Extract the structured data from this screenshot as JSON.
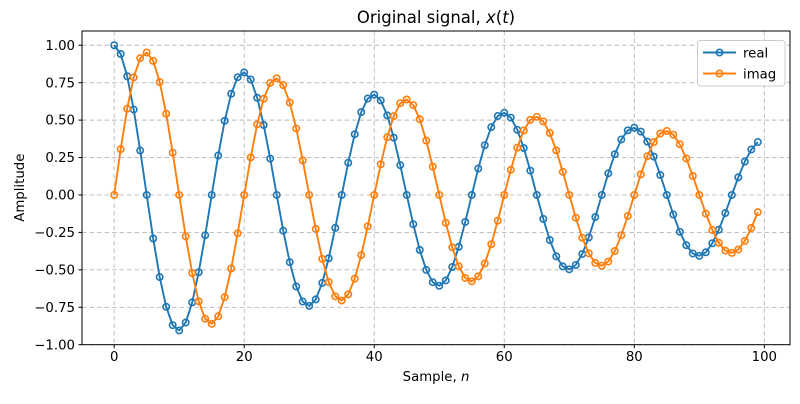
{
  "chart_data": {
    "type": "line",
    "title": "Original signal, x(t)",
    "title_parts": [
      {
        "t": "Original signal, ",
        "i": 0
      },
      {
        "t": "x",
        "i": 1
      },
      {
        "t": "(",
        "i": 0
      },
      {
        "t": "t",
        "i": 1
      },
      {
        "t": ")",
        "i": 0
      }
    ],
    "xlabel": "Sample, n",
    "xlabel_parts": [
      {
        "t": "Sample, ",
        "i": 0
      },
      {
        "t": "n",
        "i": 1
      }
    ],
    "ylabel": "Amplitude",
    "xlim": [
      -4.95,
      103.95
    ],
    "ylim": [
      -1.0,
      1.0952
    ],
    "xticks": [
      0,
      20,
      40,
      60,
      80,
      100
    ],
    "xtick_labels": [
      "0",
      "20",
      "40",
      "60",
      "80",
      "100"
    ],
    "yticks": [
      1.0,
      0.75,
      0.5,
      0.25,
      0.0,
      -0.25,
      -0.5,
      -0.75,
      -1.0
    ],
    "ytick_labels": [
      "1.00",
      "0.75",
      "0.50",
      "0.25",
      "0.00",
      "−0.25",
      "−0.50",
      "−0.75",
      "−1.00"
    ],
    "grid": true,
    "grid_style": "dashed",
    "marker": "open-circle",
    "legend": {
      "position": "upper right",
      "entries": [
        "real",
        "imag"
      ]
    },
    "colors": {
      "real": "#1f77b4",
      "imag": "#ff7f0e",
      "grid": "#b8b8b8",
      "text": "#000000",
      "spine": "#000000",
      "background": "#ffffff",
      "legend_border": "#cccccc"
    },
    "x": [
      0,
      1,
      2,
      3,
      4,
      5,
      6,
      7,
      8,
      9,
      10,
      11,
      12,
      13,
      14,
      15,
      16,
      17,
      18,
      19,
      20,
      21,
      22,
      23,
      24,
      25,
      26,
      27,
      28,
      29,
      30,
      31,
      32,
      33,
      34,
      35,
      36,
      37,
      38,
      39,
      40,
      41,
      42,
      43,
      44,
      45,
      46,
      47,
      48,
      49,
      50,
      51,
      52,
      53,
      54,
      55,
      56,
      57,
      58,
      59,
      60,
      61,
      62,
      63,
      64,
      65,
      66,
      67,
      68,
      69,
      70,
      71,
      72,
      73,
      74,
      75,
      76,
      77,
      78,
      79,
      80,
      81,
      82,
      83,
      84,
      85,
      86,
      87,
      88,
      89,
      90,
      91,
      92,
      93,
      94,
      95,
      96,
      97,
      98,
      99
    ],
    "series": [
      {
        "name": "real",
        "color": "#1f77b4",
        "values": [
          1.0,
          0.9416,
          0.793,
          0.5704,
          0.2969,
          0.0,
          -0.291,
          -0.5481,
          -0.7468,
          -0.8692,
          -0.9048,
          -0.852,
          -0.7175,
          -0.5161,
          -0.2686,
          0.0,
          0.2633,
          0.4959,
          0.6758,
          0.7866,
          0.8187,
          0.771,
          0.6492,
          0.467,
          0.2431,
          0.0,
          -0.2383,
          -0.4487,
          -0.6114,
          -0.7117,
          -0.7408,
          -0.6975,
          -0.5874,
          -0.4226,
          -0.2199,
          0.0,
          0.2156,
          0.406,
          0.5533,
          0.644,
          0.6703,
          0.6312,
          0.5315,
          0.3824,
          0.199,
          0.0,
          -0.1951,
          -0.3674,
          -0.5006,
          -0.5826,
          -0.6065,
          -0.5711,
          -0.481,
          -0.346,
          -0.1801,
          0.0,
          0.1765,
          0.3324,
          0.453,
          0.5272,
          0.5488,
          0.5168,
          0.4352,
          0.3131,
          0.1629,
          0.0,
          -0.1597,
          -0.3008,
          -0.4098,
          -0.4771,
          -0.4966,
          -0.4676,
          -0.3938,
          -0.2833,
          -0.1474,
          0.0,
          0.1445,
          0.2722,
          0.3708,
          0.4316,
          0.4493,
          0.4231,
          0.3563,
          0.2563,
          0.1334,
          0.0,
          -0.1308,
          -0.2463,
          -0.3356,
          -0.3906,
          -0.4066,
          -0.3828,
          -0.3224,
          -0.2319,
          -0.1207,
          0.0,
          0.1183,
          0.2228,
          0.3036,
          0.3534
        ]
      },
      {
        "name": "imag",
        "color": "#ff7f0e",
        "values": [
          0.0,
          0.3059,
          0.5762,
          0.7851,
          0.9138,
          0.9512,
          0.8957,
          0.7543,
          0.5426,
          0.2824,
          0.0,
          -0.2768,
          -0.5213,
          -0.7104,
          -0.8269,
          -0.8607,
          -0.8104,
          -0.6826,
          -0.491,
          -0.2555,
          0.0,
          0.2505,
          0.4717,
          0.6428,
          0.7481,
          0.7788,
          0.7334,
          0.6176,
          0.4443,
          0.2312,
          0.0,
          -0.2266,
          -0.4268,
          -0.5816,
          -0.677,
          -0.7047,
          -0.6636,
          -0.5588,
          -0.402,
          -0.2092,
          0.0,
          0.2051,
          0.3862,
          0.5263,
          0.6125,
          0.6376,
          0.6004,
          0.5056,
          0.3637,
          0.1893,
          0.0,
          -0.1856,
          -0.3494,
          -0.4762,
          -0.5542,
          -0.5769,
          -0.5433,
          -0.4575,
          -0.3291,
          -0.1713,
          0.0,
          0.1679,
          0.3162,
          0.4309,
          0.5015,
          0.522,
          0.4916,
          0.414,
          0.2978,
          0.155,
          0.0,
          -0.1519,
          -0.2861,
          -0.3899,
          -0.4538,
          -0.4724,
          -0.4448,
          -0.3746,
          -0.2694,
          -0.1402,
          0.0,
          0.1375,
          0.2589,
          0.3527,
          0.4106,
          0.4274,
          0.4025,
          0.339,
          0.2438,
          0.1269,
          0.0,
          -0.1244,
          -0.2342,
          -0.3192,
          -0.3715,
          -0.3867,
          -0.3642,
          -0.3067,
          -0.2206,
          -0.1148
        ]
      }
    ]
  }
}
